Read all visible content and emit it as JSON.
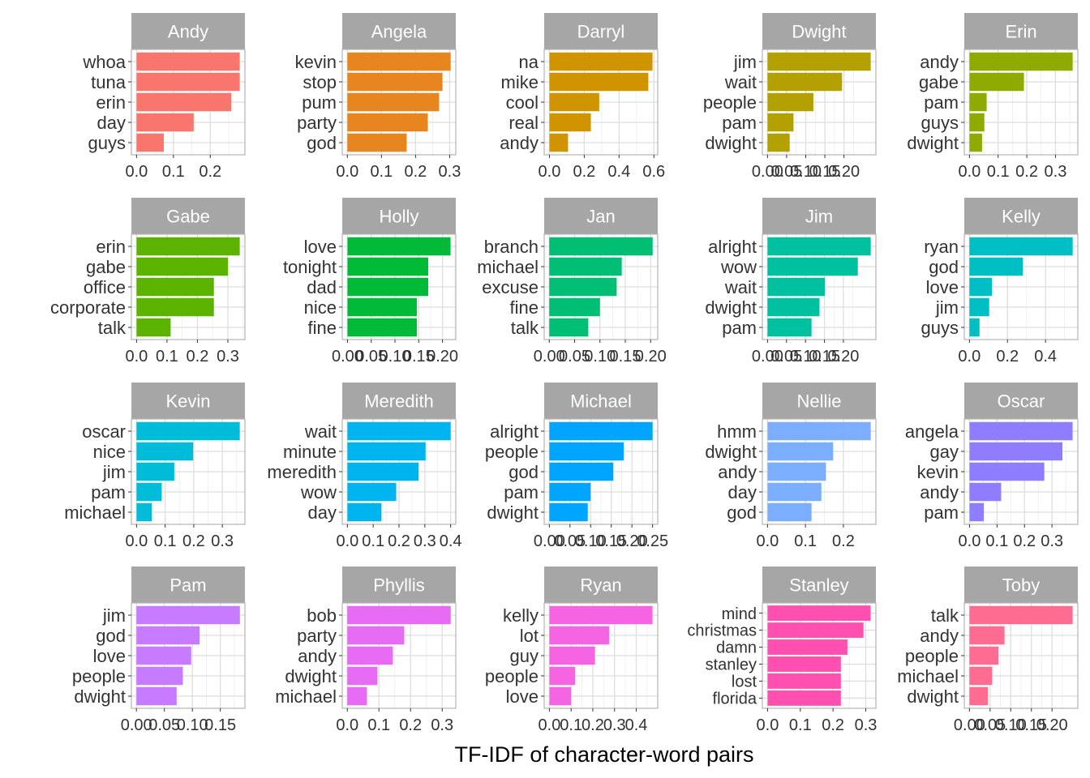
{
  "chart_data": {
    "type": "bar",
    "orientation": "horizontal",
    "layout": "facet-grid",
    "facet_rows": 4,
    "facet_cols": 5,
    "xlabel": "TF-IDF of character-word pairs",
    "ylabel": "",
    "grid": true,
    "legend": "none",
    "strip_color": "#a6a6a6",
    "panels": [
      {
        "character": "Andy",
        "color": "#F8766D",
        "words": [
          "whoa",
          "tuna",
          "erin",
          "day",
          "guys"
        ],
        "values": [
          0.28,
          0.28,
          0.257,
          0.155,
          0.074
        ],
        "ticks": [
          0.0,
          0.1,
          0.2
        ],
        "tick_labels": [
          "0.0",
          "0.1",
          "0.2"
        ],
        "xlim": [
          -0.014,
          0.294
        ]
      },
      {
        "character": "Angela",
        "color": "#E7851E",
        "words": [
          "kevin",
          "stop",
          "pum",
          "party",
          "god"
        ],
        "values": [
          0.303,
          0.279,
          0.269,
          0.236,
          0.174
        ],
        "ticks": [
          0.0,
          0.1,
          0.2,
          0.3
        ],
        "tick_labels": [
          "0.0",
          "0.1",
          "0.2",
          "0.3"
        ],
        "xlim": [
          -0.015,
          0.318
        ]
      },
      {
        "character": "Darryl",
        "color": "#D09400",
        "words": [
          "na",
          "mike",
          "cool",
          "real",
          "andy"
        ],
        "values": [
          0.592,
          0.568,
          0.286,
          0.238,
          0.107
        ],
        "ticks": [
          0.0,
          0.2,
          0.4,
          0.6
        ],
        "tick_labels": [
          "0.0",
          "0.2",
          "0.4",
          "0.6"
        ],
        "xlim": [
          -0.03,
          0.622
        ]
      },
      {
        "character": "Dwight",
        "color": "#B2A100",
        "words": [
          "jim",
          "wait",
          "people",
          "pam",
          "dwight"
        ],
        "values": [
          0.27,
          0.195,
          0.12,
          0.068,
          0.058
        ],
        "ticks": [
          0.0,
          0.05,
          0.1,
          0.15,
          0.2
        ],
        "tick_labels": [
          "0.00",
          "0.05",
          "0.10",
          "0.15",
          "0.20"
        ],
        "xlim": [
          -0.0135,
          0.2835
        ]
      },
      {
        "character": "Erin",
        "color": "#8FAA00",
        "words": [
          "andy",
          "gabe",
          "pam",
          "guys",
          "dwight"
        ],
        "values": [
          0.36,
          0.19,
          0.06,
          0.052,
          0.044
        ],
        "ticks": [
          0.0,
          0.1,
          0.2,
          0.3
        ],
        "tick_labels": [
          "0.0",
          "0.1",
          "0.2",
          "0.3"
        ],
        "xlim": [
          -0.018,
          0.378
        ]
      },
      {
        "character": "Gabe",
        "color": "#5BB300",
        "words": [
          "erin",
          "gabe",
          "office",
          "corporate",
          "talk"
        ],
        "values": [
          0.339,
          0.3,
          0.254,
          0.254,
          0.112
        ],
        "ticks": [
          0.0,
          0.1,
          0.2,
          0.3
        ],
        "tick_labels": [
          "0.0",
          "0.1",
          "0.2",
          "0.3"
        ],
        "xlim": [
          -0.017,
          0.356
        ]
      },
      {
        "character": "Holly",
        "color": "#00BA38",
        "words": [
          "love",
          "tonight",
          "dad",
          "nice",
          "fine"
        ],
        "values": [
          0.217,
          0.17,
          0.17,
          0.146,
          0.146
        ],
        "ticks": [
          0.0,
          0.05,
          0.1,
          0.15,
          0.2
        ],
        "tick_labels": [
          "0.00",
          "0.05",
          "0.10",
          "0.15",
          "0.20"
        ],
        "xlim": [
          -0.011,
          0.228
        ]
      },
      {
        "character": "Jan",
        "color": "#00BF74",
        "words": [
          "branch",
          "michael",
          "excuse",
          "fine",
          "talk"
        ],
        "values": [
          0.204,
          0.143,
          0.133,
          0.1,
          0.077
        ],
        "ticks": [
          0.0,
          0.05,
          0.1,
          0.15,
          0.2
        ],
        "tick_labels": [
          "0.00",
          "0.05",
          "0.10",
          "0.15",
          "0.20"
        ],
        "xlim": [
          -0.01,
          0.214
        ]
      },
      {
        "character": "Jim",
        "color": "#00C19F",
        "words": [
          "alright",
          "wow",
          "wait",
          "dwight",
          "pam"
        ],
        "values": [
          0.272,
          0.238,
          0.151,
          0.137,
          0.116
        ],
        "ticks": [
          0.0,
          0.05,
          0.1,
          0.15,
          0.2
        ],
        "tick_labels": [
          "0.00",
          "0.05",
          "0.10",
          "0.15",
          "0.20"
        ],
        "xlim": [
          -0.0136,
          0.2856
        ]
      },
      {
        "character": "Kelly",
        "color": "#00BFC4",
        "words": [
          "ryan",
          "god",
          "love",
          "jim",
          "guys"
        ],
        "values": [
          0.543,
          0.281,
          0.118,
          0.104,
          0.053
        ],
        "ticks": [
          0.0,
          0.2,
          0.4
        ],
        "tick_labels": [
          "0.0",
          "0.2",
          "0.4"
        ],
        "xlim": [
          -0.027,
          0.57
        ]
      },
      {
        "character": "Kevin",
        "color": "#00BCD8",
        "words": [
          "oscar",
          "nice",
          "jim",
          "pam",
          "michael"
        ],
        "values": [
          0.361,
          0.198,
          0.132,
          0.088,
          0.053
        ],
        "ticks": [
          0.0,
          0.1,
          0.2,
          0.3
        ],
        "tick_labels": [
          "0.0",
          "0.1",
          "0.2",
          "0.3"
        ],
        "xlim": [
          -0.018,
          0.379
        ]
      },
      {
        "character": "Meredith",
        "color": "#00B4EF",
        "words": [
          "wait",
          "minute",
          "meredith",
          "wow",
          "day"
        ],
        "values": [
          0.4,
          0.303,
          0.276,
          0.189,
          0.132
        ],
        "ticks": [
          0.0,
          0.1,
          0.2,
          0.3,
          0.4
        ],
        "tick_labels": [
          "0.0",
          "0.1",
          "0.2",
          "0.3",
          "0.4"
        ],
        "xlim": [
          -0.02,
          0.42
        ]
      },
      {
        "character": "Michael",
        "color": "#00A5FF",
        "words": [
          "alright",
          "people",
          "god",
          "pam",
          "dwight"
        ],
        "values": [
          0.25,
          0.18,
          0.155,
          0.1,
          0.093
        ],
        "ticks": [
          0.0,
          0.05,
          0.1,
          0.15,
          0.2,
          0.25
        ],
        "tick_labels": [
          "0.00",
          "0.05",
          "0.10",
          "0.15",
          "0.20",
          "0.25"
        ],
        "xlim": [
          -0.0125,
          0.2625
        ]
      },
      {
        "character": "Nellie",
        "color": "#7CAEFF",
        "words": [
          "hmm",
          "dwight",
          "andy",
          "day",
          "god"
        ],
        "values": [
          0.272,
          0.173,
          0.154,
          0.142,
          0.116
        ],
        "ticks": [
          0.0,
          0.1,
          0.2
        ],
        "tick_labels": [
          "0.0",
          "0.1",
          "0.2"
        ],
        "xlim": [
          -0.0136,
          0.2856
        ]
      },
      {
        "character": "Oscar",
        "color": "#8F7DFF",
        "words": [
          "angela",
          "gay",
          "kevin",
          "andy",
          "pam"
        ],
        "values": [
          0.375,
          0.338,
          0.272,
          0.115,
          0.052
        ],
        "ticks": [
          0.0,
          0.1,
          0.2,
          0.3
        ],
        "tick_labels": [
          "0.0",
          "0.1",
          "0.2",
          "0.3"
        ],
        "xlim": [
          -0.019,
          0.394
        ]
      },
      {
        "character": "Pam",
        "color": "#C77CFF",
        "words": [
          "jim",
          "god",
          "love",
          "people",
          "dwight"
        ],
        "values": [
          0.185,
          0.113,
          0.098,
          0.083,
          0.072
        ],
        "ticks": [
          0.0,
          0.05,
          0.1,
          0.15
        ],
        "tick_labels": [
          "0.00",
          "0.05",
          "0.10",
          "0.15"
        ],
        "xlim": [
          -0.009,
          0.194
        ]
      },
      {
        "character": "Phyllis",
        "color": "#E76BF3",
        "words": [
          "bob",
          "party",
          "andy",
          "dwight",
          "michael"
        ],
        "values": [
          0.327,
          0.18,
          0.144,
          0.095,
          0.062
        ],
        "ticks": [
          0.0,
          0.1,
          0.2,
          0.3
        ],
        "tick_labels": [
          "0.0",
          "0.1",
          "0.2",
          "0.3"
        ],
        "xlim": [
          -0.016,
          0.343
        ]
      },
      {
        "character": "Ryan",
        "color": "#F564E3",
        "words": [
          "kelly",
          "lot",
          "guy",
          "people",
          "love"
        ],
        "values": [
          0.475,
          0.275,
          0.21,
          0.118,
          0.1
        ],
        "ticks": [
          0.0,
          0.1,
          0.2,
          0.3,
          0.4
        ],
        "tick_labels": [
          "0.0",
          "0.1",
          "0.2",
          "0.3",
          "0.4"
        ],
        "xlim": [
          -0.024,
          0.499
        ]
      },
      {
        "character": "Stanley",
        "color": "#FF4FB0",
        "words": [
          "mind",
          "christmas",
          "damn",
          "stanley",
          "lost",
          "florida"
        ],
        "values": [
          0.315,
          0.293,
          0.244,
          0.224,
          0.224,
          0.224
        ],
        "ticks": [
          0.0,
          0.1,
          0.2,
          0.3
        ],
        "tick_labels": [
          "0.0",
          "0.1",
          "0.2",
          "0.3"
        ],
        "xlim": [
          -0.016,
          0.331
        ]
      },
      {
        "character": "Toby",
        "color": "#FF6C91",
        "words": [
          "talk",
          "andy",
          "people",
          "michael",
          "dwight"
        ],
        "values": [
          0.25,
          0.085,
          0.07,
          0.055,
          0.045
        ],
        "ticks": [
          0.0,
          0.05,
          0.1,
          0.15,
          0.2
        ],
        "tick_labels": [
          "0.00",
          "0.05",
          "0.10",
          "0.15",
          "0.20"
        ],
        "xlim": [
          -0.0125,
          0.2625
        ]
      }
    ]
  }
}
